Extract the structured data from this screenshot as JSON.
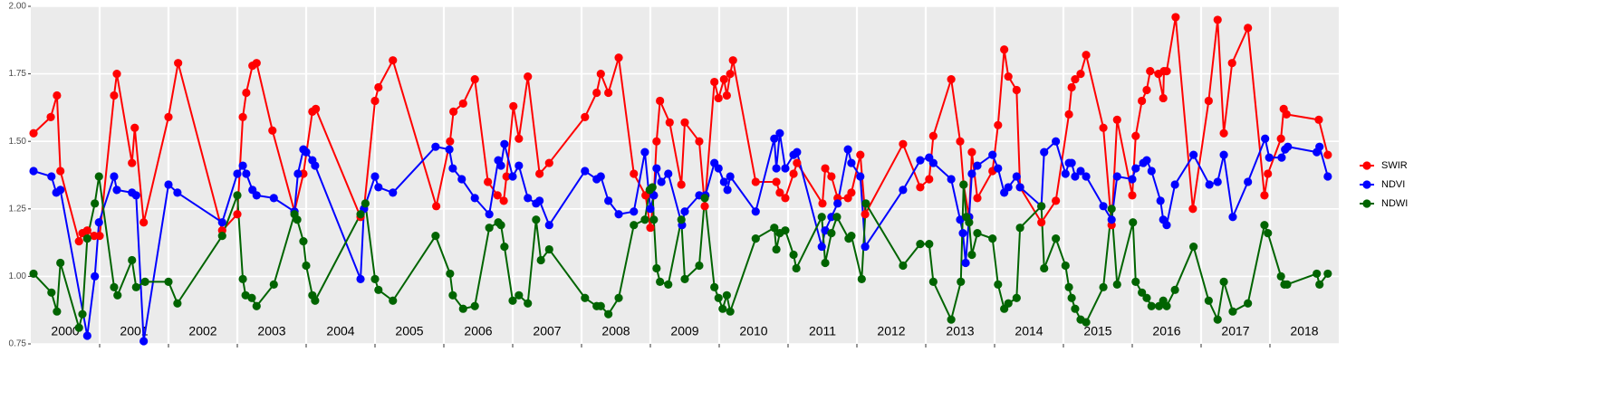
{
  "chart_data": {
    "type": "line",
    "xlim": [
      2000,
      2019
    ],
    "ylim": [
      0.75,
      2
    ],
    "yticks": [
      0.75,
      {
        "value": 1,
        "label": "1.00"
      },
      1.25,
      {
        "value": 1.5,
        "label": "1.50"
      },
      1.75,
      {
        "value": 2,
        "label": "2.00"
      }
    ],
    "xgrid": [
      2001,
      2002,
      2003,
      2004,
      2005,
      2006,
      2007,
      2008,
      2009,
      2010,
      2011,
      2012,
      2013,
      2014,
      2015,
      2016,
      2017,
      2018
    ],
    "xticks": [
      {
        "value": 2000.5,
        "label": "2000"
      },
      {
        "value": 2001.5,
        "label": "2001"
      },
      {
        "value": 2002.5,
        "label": "2002"
      },
      {
        "value": 2003.5,
        "label": "2003"
      },
      {
        "value": 2004.5,
        "label": "2004"
      },
      {
        "value": 2005.5,
        "label": "2005"
      },
      {
        "value": 2006.5,
        "label": "2006"
      },
      {
        "value": 2007.5,
        "label": "2007"
      },
      {
        "value": 2008.5,
        "label": "2008"
      },
      {
        "value": 2009.5,
        "label": "2009"
      },
      {
        "value": 2010.5,
        "label": "2010"
      },
      {
        "value": 2011.5,
        "label": "2011"
      },
      {
        "value": 2012.5,
        "label": "2012"
      },
      {
        "value": 2013.5,
        "label": "2013"
      },
      {
        "value": 2014.5,
        "label": "2014"
      },
      {
        "value": 2015.5,
        "label": "2015"
      },
      {
        "value": 2016.5,
        "label": "2016"
      },
      {
        "value": 2017.5,
        "label": "2017"
      },
      {
        "value": 2018.5,
        "label": "2018"
      }
    ],
    "grid": true,
    "legend": "right",
    "series": [
      {
        "name": "SWIR",
        "color": "#ff0000",
        "x": [
          2000.04,
          2000.29,
          2000.38,
          2000.43,
          2000.7,
          2000.75,
          2000.82,
          2000.92,
          2001.0,
          2001.21,
          2001.25,
          2001.47,
          2001.51,
          2001.64,
          2002.0,
          2002.14,
          2002.78,
          2003.0,
          2003.08,
          2003.13,
          2003.22,
          2003.28,
          2003.51,
          2003.83,
          2003.96,
          2004.09,
          2004.14,
          2004.79,
          2004.84,
          2005.0,
          2005.05,
          2005.26,
          2005.89,
          2006.09,
          2006.14,
          2006.28,
          2006.45,
          2006.64,
          2006.78,
          2006.87,
          2006.91,
          2007.01,
          2007.09,
          2007.22,
          2007.39,
          2007.53,
          2008.05,
          2008.22,
          2008.28,
          2008.39,
          2008.54,
          2008.76,
          2008.93,
          2009.0,
          2009.05,
          2009.09,
          2009.14,
          2009.28,
          2009.45,
          2009.5,
          2009.71,
          2009.79,
          2009.93,
          2009.99,
          2010.07,
          2010.11,
          2010.16,
          2010.2,
          2010.53,
          2010.83,
          2010.88,
          2010.96,
          2011.08,
          2011.13,
          2011.5,
          2011.54,
          2011.63,
          2011.72,
          2011.87,
          2011.92,
          2012.05,
          2012.12,
          2012.67,
          2012.92,
          2013.05,
          2013.11,
          2013.37,
          2013.5,
          2013.55,
          2013.63,
          2013.67,
          2013.75,
          2013.97,
          2014.05,
          2014.14,
          2014.2,
          2014.32,
          2014.37,
          2014.68,
          2014.89,
          2015.08,
          2015.12,
          2015.17,
          2015.25,
          2015.33,
          2015.58,
          2015.7,
          2015.78,
          2016.0,
          2016.05,
          2016.14,
          2016.21,
          2016.26,
          2016.38,
          2016.45,
          2016.46,
          2016.5,
          2016.63,
          2016.88,
          2017.11,
          2017.24,
          2017.33,
          2017.45,
          2017.68,
          2017.92,
          2017.97,
          2018.16,
          2018.2,
          2018.24,
          2018.71,
          2018.84
        ],
        "values": [
          1.53,
          1.59,
          1.67,
          1.39,
          1.13,
          1.16,
          1.17,
          1.15,
          1.15,
          1.67,
          1.75,
          1.42,
          1.55,
          1.2,
          1.59,
          1.79,
          1.17,
          1.23,
          1.59,
          1.68,
          1.78,
          1.79,
          1.54,
          1.24,
          1.38,
          1.61,
          1.62,
          1.22,
          1.25,
          1.65,
          1.7,
          1.8,
          1.26,
          1.5,
          1.61,
          1.64,
          1.73,
          1.35,
          1.3,
          1.28,
          1.37,
          1.63,
          1.51,
          1.74,
          1.38,
          1.42,
          1.59,
          1.68,
          1.75,
          1.68,
          1.81,
          1.38,
          1.3,
          1.18,
          1.3,
          1.5,
          1.65,
          1.57,
          1.34,
          1.57,
          1.5,
          1.26,
          1.72,
          1.66,
          1.73,
          1.67,
          1.75,
          1.8,
          1.35,
          1.35,
          1.31,
          1.29,
          1.38,
          1.42,
          1.27,
          1.4,
          1.37,
          1.29,
          1.29,
          1.31,
          1.45,
          1.23,
          1.49,
          1.33,
          1.36,
          1.52,
          1.73,
          1.5,
          1.34,
          1.22,
          1.46,
          1.29,
          1.39,
          1.56,
          1.84,
          1.74,
          1.69,
          1.33,
          1.2,
          1.28,
          1.6,
          1.7,
          1.73,
          1.75,
          1.82,
          1.55,
          1.19,
          1.58,
          1.3,
          1.52,
          1.65,
          1.69,
          1.76,
          1.75,
          1.66,
          1.76,
          1.76,
          1.96,
          1.25,
          1.65,
          1.95,
          1.53,
          1.79,
          1.92,
          1.3,
          1.38,
          1.51,
          1.62,
          1.6,
          1.58,
          1.45
        ]
      },
      {
        "name": "NDVI",
        "color": "#0000ff",
        "x": [
          2000.04,
          2000.3,
          2000.37,
          2000.43,
          2000.82,
          2000.93,
          2000.99,
          2001.21,
          2001.25,
          2001.47,
          2001.53,
          2001.64,
          2002.0,
          2002.13,
          2002.78,
          2003.0,
          2003.08,
          2003.13,
          2003.22,
          2003.28,
          2003.53,
          2003.83,
          2003.88,
          2003.96,
          2004.0,
          2004.09,
          2004.13,
          2004.79,
          2004.84,
          2005.0,
          2005.05,
          2005.26,
          2005.88,
          2006.08,
          2006.13,
          2006.26,
          2006.45,
          2006.66,
          2006.79,
          2006.83,
          2006.88,
          2007.0,
          2007.09,
          2007.22,
          2007.34,
          2007.39,
          2007.53,
          2008.05,
          2008.22,
          2008.28,
          2008.39,
          2008.54,
          2008.76,
          2008.92,
          2009.0,
          2009.05,
          2009.09,
          2009.16,
          2009.26,
          2009.46,
          2009.5,
          2009.71,
          2009.8,
          2009.93,
          2009.99,
          2010.07,
          2010.12,
          2010.16,
          2010.53,
          2010.8,
          2010.83,
          2010.88,
          2010.96,
          2011.08,
          2011.13,
          2011.49,
          2011.54,
          2011.63,
          2011.72,
          2011.87,
          2011.92,
          2012.05,
          2012.12,
          2012.67,
          2012.92,
          2013.05,
          2013.11,
          2013.37,
          2013.5,
          2013.54,
          2013.58,
          2013.63,
          2013.67,
          2013.75,
          2013.97,
          2014.05,
          2014.14,
          2014.2,
          2014.32,
          2014.37,
          2014.68,
          2014.72,
          2014.89,
          2015.03,
          2015.08,
          2015.12,
          2015.17,
          2015.25,
          2015.33,
          2015.58,
          2015.7,
          2015.78,
          2016.0,
          2016.05,
          2016.16,
          2016.21,
          2016.28,
          2016.41,
          2016.45,
          2016.5,
          2016.62,
          2016.89,
          2017.12,
          2017.24,
          2017.33,
          2017.46,
          2017.68,
          2017.93,
          2017.99,
          2018.17,
          2018.22,
          2018.26,
          2018.68,
          2018.72,
          2018.84
        ],
        "values": [
          1.39,
          1.37,
          1.31,
          1.32,
          0.78,
          1.0,
          1.2,
          1.37,
          1.32,
          1.31,
          1.3,
          0.76,
          1.34,
          1.31,
          1.2,
          1.38,
          1.41,
          1.38,
          1.32,
          1.3,
          1.29,
          1.24,
          1.38,
          1.47,
          1.46,
          1.43,
          1.41,
          0.99,
          1.25,
          1.37,
          1.33,
          1.31,
          1.48,
          1.47,
          1.4,
          1.36,
          1.29,
          1.23,
          1.43,
          1.41,
          1.49,
          1.37,
          1.41,
          1.29,
          1.27,
          1.28,
          1.19,
          1.39,
          1.36,
          1.37,
          1.28,
          1.23,
          1.24,
          1.46,
          1.25,
          1.3,
          1.4,
          1.35,
          1.38,
          1.19,
          1.24,
          1.3,
          1.3,
          1.42,
          1.4,
          1.35,
          1.32,
          1.37,
          1.24,
          1.51,
          1.4,
          1.53,
          1.4,
          1.45,
          1.46,
          1.11,
          1.17,
          1.22,
          1.27,
          1.47,
          1.42,
          1.37,
          1.11,
          1.32,
          1.43,
          1.44,
          1.42,
          1.36,
          1.21,
          1.16,
          1.05,
          1.22,
          1.38,
          1.41,
          1.45,
          1.4,
          1.31,
          1.33,
          1.37,
          1.33,
          1.26,
          1.46,
          1.5,
          1.38,
          1.42,
          1.42,
          1.37,
          1.39,
          1.37,
          1.26,
          1.21,
          1.37,
          1.36,
          1.4,
          1.42,
          1.43,
          1.39,
          1.28,
          1.21,
          1.19,
          1.34,
          1.45,
          1.34,
          1.35,
          1.45,
          1.22,
          1.35,
          1.51,
          1.44,
          1.44,
          1.47,
          1.48,
          1.46,
          1.48,
          1.37
        ]
      },
      {
        "name": "NDWI",
        "color": "#006400",
        "x": [
          2000.04,
          2000.3,
          2000.38,
          2000.43,
          2000.7,
          2000.75,
          2000.82,
          2000.93,
          2000.99,
          2001.21,
          2001.26,
          2001.47,
          2001.53,
          2001.66,
          2002.0,
          2002.13,
          2002.78,
          2003.0,
          2003.08,
          2003.12,
          2003.21,
          2003.28,
          2003.53,
          2003.83,
          2003.87,
          2003.96,
          2004.0,
          2004.09,
          2004.13,
          2004.79,
          2004.86,
          2005.0,
          2005.05,
          2005.26,
          2005.88,
          2006.09,
          2006.13,
          2006.28,
          2006.45,
          2006.66,
          2006.79,
          2006.83,
          2006.88,
          2007.0,
          2007.09,
          2007.22,
          2007.34,
          2007.41,
          2007.53,
          2008.05,
          2008.22,
          2008.28,
          2008.39,
          2008.54,
          2008.76,
          2008.92,
          2008.99,
          2009.03,
          2009.05,
          2009.09,
          2009.14,
          2009.26,
          2009.45,
          2009.5,
          2009.71,
          2009.79,
          2009.93,
          2009.99,
          2010.05,
          2010.11,
          2010.16,
          2010.53,
          2010.8,
          2010.83,
          2010.88,
          2010.96,
          2011.08,
          2011.12,
          2011.49,
          2011.54,
          2011.63,
          2011.71,
          2011.88,
          2011.92,
          2012.07,
          2012.13,
          2012.67,
          2012.92,
          2013.05,
          2013.11,
          2013.37,
          2013.51,
          2013.55,
          2013.59,
          2013.63,
          2013.67,
          2013.75,
          2013.97,
          2014.05,
          2014.14,
          2014.2,
          2014.32,
          2014.37,
          2014.68,
          2014.72,
          2014.89,
          2015.03,
          2015.08,
          2015.12,
          2015.17,
          2015.25,
          2015.33,
          2015.58,
          2015.7,
          2015.78,
          2016.01,
          2016.05,
          2016.14,
          2016.21,
          2016.28,
          2016.39,
          2016.45,
          2016.5,
          2016.62,
          2016.89,
          2017.11,
          2017.24,
          2017.33,
          2017.46,
          2017.68,
          2017.92,
          2017.97,
          2018.16,
          2018.21,
          2018.25,
          2018.68,
          2018.72,
          2018.84
        ],
        "values": [
          1.01,
          0.94,
          0.87,
          1.05,
          0.81,
          0.86,
          1.14,
          1.27,
          1.37,
          0.96,
          0.93,
          1.06,
          0.96,
          0.98,
          0.98,
          0.9,
          1.15,
          1.3,
          0.99,
          0.93,
          0.92,
          0.89,
          0.97,
          1.23,
          1.21,
          1.13,
          1.04,
          0.93,
          0.91,
          1.23,
          1.27,
          0.99,
          0.95,
          0.91,
          1.15,
          1.01,
          0.93,
          0.88,
          0.89,
          1.18,
          1.2,
          1.19,
          1.11,
          0.91,
          0.93,
          0.9,
          1.21,
          1.06,
          1.1,
          0.92,
          0.89,
          0.89,
          0.86,
          0.92,
          1.19,
          1.21,
          1.32,
          1.33,
          1.21,
          1.03,
          0.98,
          0.97,
          1.21,
          0.99,
          1.04,
          1.29,
          0.96,
          0.92,
          0.88,
          0.93,
          0.87,
          1.14,
          1.18,
          1.1,
          1.16,
          1.17,
          1.08,
          1.03,
          1.22,
          1.05,
          1.16,
          1.22,
          1.14,
          1.15,
          0.99,
          1.27,
          1.04,
          1.12,
          1.12,
          0.98,
          0.84,
          0.98,
          1.34,
          1.22,
          1.2,
          1.08,
          1.16,
          1.14,
          0.97,
          0.88,
          0.9,
          0.92,
          1.18,
          1.26,
          1.03,
          1.14,
          1.04,
          0.96,
          0.92,
          0.88,
          0.84,
          0.83,
          0.96,
          1.25,
          0.97,
          1.2,
          0.98,
          0.94,
          0.92,
          0.89,
          0.89,
          0.91,
          0.89,
          0.95,
          1.11,
          0.91,
          0.84,
          0.98,
          0.87,
          0.9,
          1.19,
          1.16,
          1.0,
          0.97,
          0.97,
          1.01,
          0.97,
          1.01
        ]
      }
    ]
  }
}
